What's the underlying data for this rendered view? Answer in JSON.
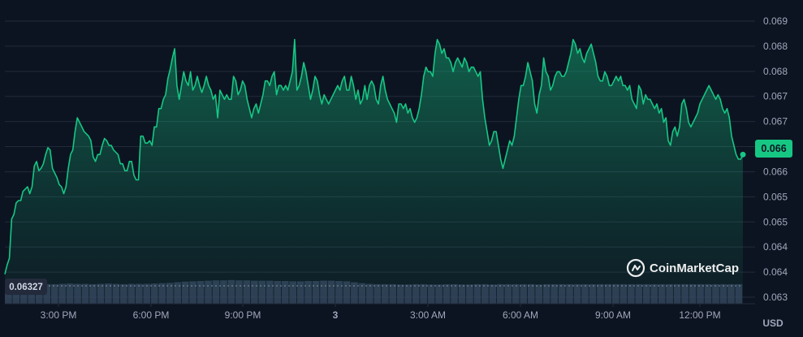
{
  "chart_data": {
    "type": "area",
    "title": "",
    "xlabel": "",
    "ylabel": "",
    "currency": "USD",
    "current_price": "0.066",
    "open_price": "0.06327",
    "brand": "CoinMarketCap",
    "colors": {
      "background": "#0d1421",
      "line": "#16c784",
      "grid": "#222a3b",
      "volume": "#3a4462",
      "axis_text": "#a1a7bb"
    },
    "grid": true,
    "legend": "none",
    "x_ticks": [
      "3:00 PM",
      "6:00 PM",
      "9:00 PM",
      "3",
      "3:00 AM",
      "6:00 AM",
      "9:00 AM",
      "12:00 PM"
    ],
    "y_ticks": [
      "0.069",
      "0.068",
      "0.068",
      "0.067",
      "0.067",
      "0.066",
      "0.066",
      "0.065",
      "0.065",
      "0.064",
      "0.064",
      "0.063"
    ],
    "ylim": [
      0.063,
      0.069
    ],
    "series": [
      {
        "values": [
          0.0635,
          0.0637,
          0.06385,
          0.0647,
          0.0648,
          0.06505,
          0.0651,
          0.0651,
          0.0653,
          0.06535,
          0.0654,
          0.06525,
          0.0654,
          0.06585,
          0.06595,
          0.06575,
          0.0658,
          0.0659,
          0.0661,
          0.06625,
          0.0662,
          0.0658,
          0.0657,
          0.0656,
          0.06545,
          0.0654,
          0.06525,
          0.0654,
          0.0658,
          0.0661,
          0.0662,
          0.0666,
          0.0669,
          0.0668,
          0.0667,
          0.0666,
          0.06655,
          0.0665,
          0.0664,
          0.06605,
          0.06595,
          0.0661,
          0.0661,
          0.0663,
          0.06645,
          0.0664,
          0.0663,
          0.0663,
          0.0662,
          0.06615,
          0.0661,
          0.0659,
          0.0659,
          0.06575,
          0.06575,
          0.06595,
          0.06595,
          0.06565,
          0.06555,
          0.06555,
          0.0665,
          0.0665,
          0.06635,
          0.06635,
          0.0664,
          0.0663,
          0.0667,
          0.0667,
          0.0671,
          0.0671,
          0.0673,
          0.0674,
          0.06775,
          0.06795,
          0.0682,
          0.0684,
          0.0676,
          0.0673,
          0.0676,
          0.0679,
          0.0677,
          0.0676,
          0.0679,
          0.0675,
          0.0676,
          0.0678,
          0.0676,
          0.06745,
          0.0676,
          0.0678,
          0.0676,
          0.0675,
          0.0673,
          0.0674,
          0.0669,
          0.0675,
          0.0674,
          0.0673,
          0.0674,
          0.0673,
          0.0673,
          0.0678,
          0.0677,
          0.0674,
          0.0675,
          0.0677,
          0.0676,
          0.0673,
          0.0671,
          0.0669,
          0.0671,
          0.0672,
          0.067,
          0.0672,
          0.0674,
          0.0677,
          0.0677,
          0.0676,
          0.0678,
          0.0679,
          0.0674,
          0.0676,
          0.0676,
          0.0675,
          0.0676,
          0.0675,
          0.0677,
          0.0679,
          0.0686,
          0.0675,
          0.0676,
          0.0678,
          0.0681,
          0.0679,
          0.0676,
          0.0673,
          0.0675,
          0.0678,
          0.0677,
          0.0674,
          0.0672,
          0.0674,
          0.0673,
          0.0672,
          0.0673,
          0.0674,
          0.0675,
          0.0676,
          0.0675,
          0.0677,
          0.0678,
          0.0675,
          0.0675,
          0.0678,
          0.0676,
          0.0673,
          0.0675,
          0.0672,
          0.0673,
          0.0676,
          0.0673,
          0.0676,
          0.0677,
          0.0676,
          0.0673,
          0.0672,
          0.0676,
          0.0678,
          0.0675,
          0.0673,
          0.0672,
          0.0671,
          0.067,
          0.0668,
          0.0672,
          0.0672,
          0.0671,
          0.0672,
          0.067,
          0.0671,
          0.0669,
          0.0668,
          0.0669,
          0.0671,
          0.0674,
          0.0678,
          0.068,
          0.0679,
          0.0679,
          0.0678,
          0.0683,
          0.0686,
          0.0685,
          0.0683,
          0.0684,
          0.0682,
          0.0682,
          0.0681,
          0.0679,
          0.0681,
          0.0682,
          0.0681,
          0.068,
          0.0682,
          0.0681,
          0.0679,
          0.068,
          0.068,
          0.0679,
          0.0678,
          0.0679,
          0.0673,
          0.0669,
          0.0666,
          0.0663,
          0.0664,
          0.0666,
          0.0666,
          0.0663,
          0.066,
          0.0658,
          0.066,
          0.0662,
          0.0664,
          0.0663,
          0.0665,
          0.0669,
          0.0673,
          0.0676,
          0.0676,
          0.0678,
          0.0681,
          0.0679,
          0.0677,
          0.0672,
          0.067,
          0.0674,
          0.0676,
          0.0682,
          0.0679,
          0.0678,
          0.0675,
          0.0676,
          0.0678,
          0.0679,
          0.0679,
          0.0678,
          0.0678,
          0.0679,
          0.0681,
          0.0683,
          0.0686,
          0.0685,
          0.0683,
          0.0684,
          0.0682,
          0.0681,
          0.0683,
          0.0684,
          0.0685,
          0.0683,
          0.0681,
          0.0678,
          0.0677,
          0.0677,
          0.0679,
          0.0678,
          0.0676,
          0.0676,
          0.0677,
          0.0678,
          0.0677,
          0.0678,
          0.0676,
          0.0676,
          0.0675,
          0.0676,
          0.0673,
          0.0672,
          0.0671,
          0.0676,
          0.0675,
          0.0672,
          0.0674,
          0.0673,
          0.0673,
          0.0672,
          0.0671,
          0.0672,
          0.067,
          0.0671,
          0.0668,
          0.0669,
          0.0664,
          0.0663,
          0.0666,
          0.0667,
          0.0665,
          0.0667,
          0.0672,
          0.0673,
          0.0671,
          0.0668,
          0.0667,
          0.0668,
          0.0669,
          0.067,
          0.0672,
          0.0673,
          0.0674,
          0.0675,
          0.0676,
          0.0675,
          0.0674,
          0.0673,
          0.0674,
          0.0673,
          0.0671,
          0.067,
          0.0671,
          0.0669,
          0.0665,
          0.0663,
          0.0661,
          0.066,
          0.066,
          0.0661
        ]
      }
    ],
    "volume_series": [
      {
        "values": [
          0.62,
          0.64,
          0.62,
          0.63,
          0.63,
          0.62,
          0.62,
          0.63,
          0.64,
          0.63,
          0.63,
          0.62,
          0.63,
          0.64,
          0.63,
          0.62,
          0.63,
          0.63,
          0.63,
          0.64,
          0.65,
          0.66,
          0.68,
          0.7,
          0.71,
          0.72,
          0.73,
          0.74,
          0.74,
          0.75,
          0.74,
          0.74,
          0.73,
          0.73,
          0.73,
          0.72,
          0.72,
          0.71,
          0.71,
          0.72,
          0.72,
          0.73,
          0.73,
          0.72,
          0.71,
          0.68,
          0.65,
          0.63,
          0.62,
          0.62,
          0.62,
          0.61,
          0.61,
          0.62,
          0.62,
          0.61,
          0.61,
          0.62,
          0.62,
          0.61,
          0.61,
          0.62,
          0.62,
          0.61,
          0.62,
          0.62,
          0.62,
          0.62,
          0.62,
          0.61,
          0.62,
          0.62,
          0.62,
          0.62,
          0.62,
          0.62,
          0.62,
          0.62,
          0.62,
          0.62,
          0.62,
          0.62,
          0.62,
          0.62,
          0.62,
          0.62,
          0.62,
          0.62,
          0.62,
          0.62,
          0.62,
          0.62,
          0.62,
          0.62,
          0.62,
          0.62
        ]
      }
    ]
  }
}
